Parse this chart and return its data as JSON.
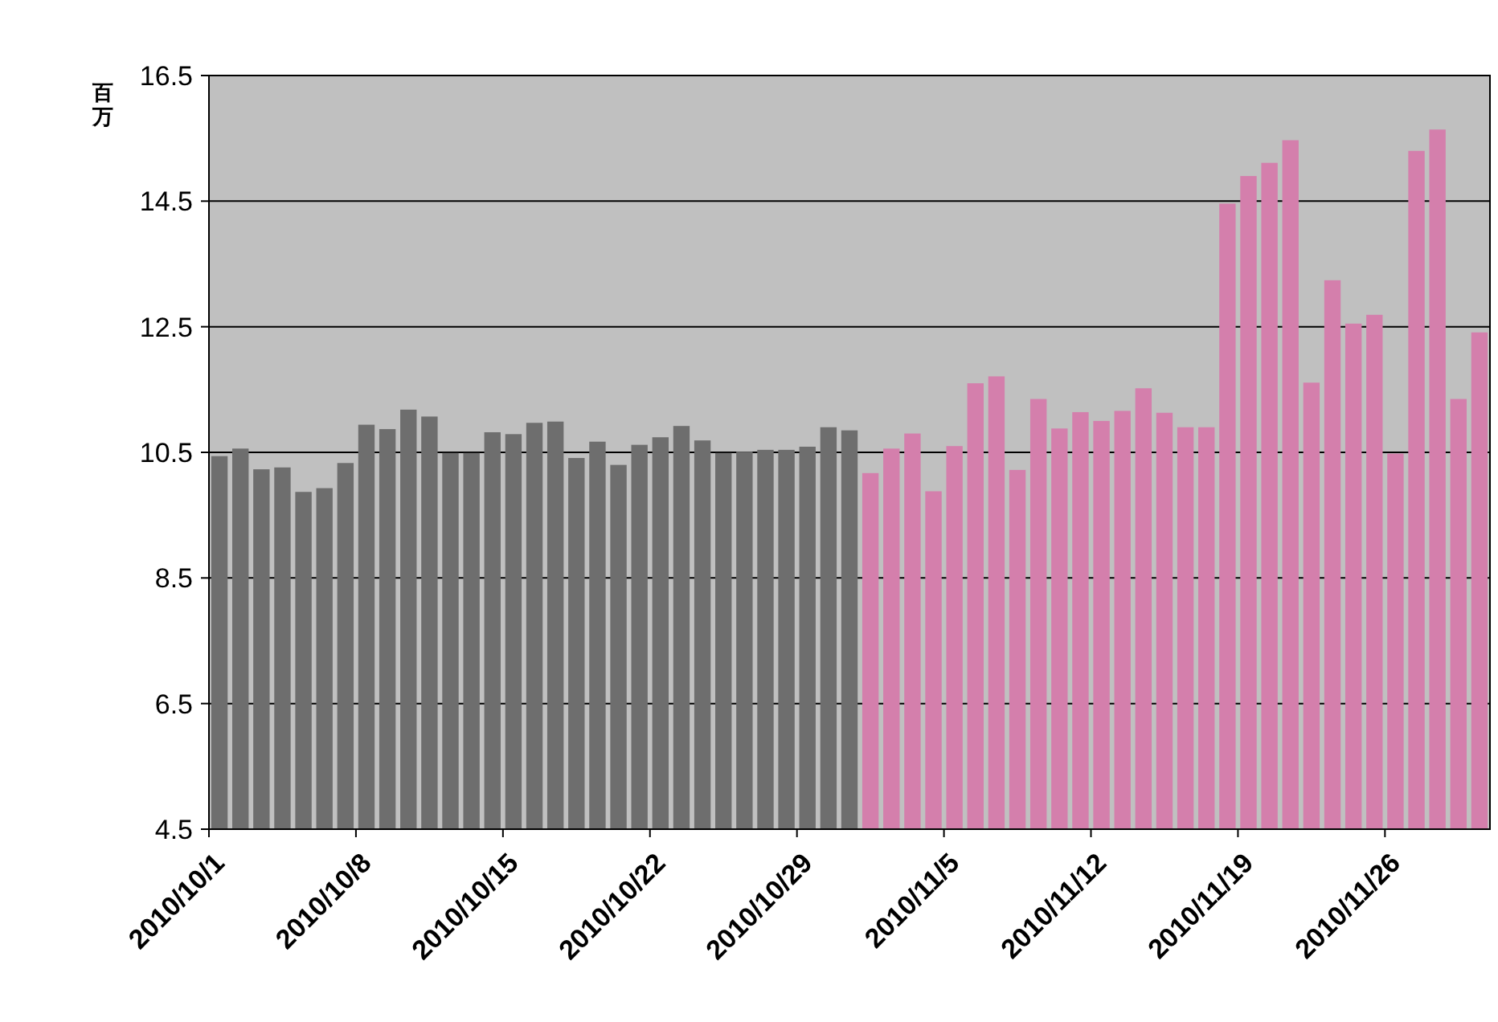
{
  "chart_data": {
    "type": "bar",
    "ylabel": "百万",
    "categories": [
      "2010/10/1",
      null,
      null,
      null,
      null,
      null,
      null,
      "2010/10/8",
      null,
      null,
      null,
      null,
      null,
      null,
      "2010/10/15",
      null,
      null,
      null,
      null,
      null,
      null,
      "2010/10/22",
      null,
      null,
      null,
      null,
      null,
      null,
      "2010/10/29",
      null,
      null,
      null,
      null,
      null,
      null,
      "2010/11/5",
      null,
      null,
      null,
      null,
      null,
      null,
      "2010/11/12",
      null,
      null,
      null,
      null,
      null,
      null,
      "2010/11/19",
      null,
      null,
      null,
      null,
      null,
      null,
      "2010/11/26",
      null,
      null,
      null,
      null
    ],
    "values": [
      10.44,
      10.56,
      10.23,
      10.26,
      9.87,
      9.93,
      10.33,
      10.94,
      10.87,
      11.18,
      11.07,
      10.49,
      10.49,
      10.82,
      10.79,
      10.97,
      10.99,
      10.41,
      10.67,
      10.3,
      10.62,
      10.74,
      10.92,
      10.69,
      10.49,
      10.51,
      10.54,
      10.54,
      10.59,
      10.9,
      10.85,
      10.17,
      10.56,
      10.8,
      9.88,
      10.6,
      11.6,
      11.71,
      10.22,
      11.35,
      10.88,
      11.14,
      11.0,
      11.16,
      11.52,
      11.13,
      10.9,
      10.9,
      14.46,
      14.9,
      15.11,
      15.47,
      11.61,
      13.24,
      12.55,
      12.69,
      10.48,
      15.3,
      15.64,
      11.35,
      12.41
    ],
    "colors": [
      "#6e6e6e",
      "#6e6e6e",
      "#6e6e6e",
      "#6e6e6e",
      "#6e6e6e",
      "#6e6e6e",
      "#6e6e6e",
      "#6e6e6e",
      "#6e6e6e",
      "#6e6e6e",
      "#6e6e6e",
      "#6e6e6e",
      "#6e6e6e",
      "#6e6e6e",
      "#6e6e6e",
      "#6e6e6e",
      "#6e6e6e",
      "#6e6e6e",
      "#6e6e6e",
      "#6e6e6e",
      "#6e6e6e",
      "#6e6e6e",
      "#6e6e6e",
      "#6e6e6e",
      "#6e6e6e",
      "#6e6e6e",
      "#6e6e6e",
      "#6e6e6e",
      "#6e6e6e",
      "#6e6e6e",
      "#6e6e6e",
      "#d47fac",
      "#d47fac",
      "#d47fac",
      "#d47fac",
      "#d47fac",
      "#d47fac",
      "#d47fac",
      "#d47fac",
      "#d47fac",
      "#d47fac",
      "#d47fac",
      "#d47fac",
      "#d47fac",
      "#d47fac",
      "#d47fac",
      "#d47fac",
      "#d47fac",
      "#d47fac",
      "#d47fac",
      "#d47fac",
      "#d47fac",
      "#d47fac",
      "#d47fac",
      "#d47fac",
      "#d47fac",
      "#d47fac",
      "#d47fac",
      "#d47fac",
      "#d47fac",
      "#d47fac"
    ],
    "ylim": [
      4.5,
      16.5
    ],
    "yticks": [
      4.5,
      6.5,
      8.5,
      10.5,
      12.5,
      14.5,
      16.5
    ],
    "grid": "y"
  }
}
